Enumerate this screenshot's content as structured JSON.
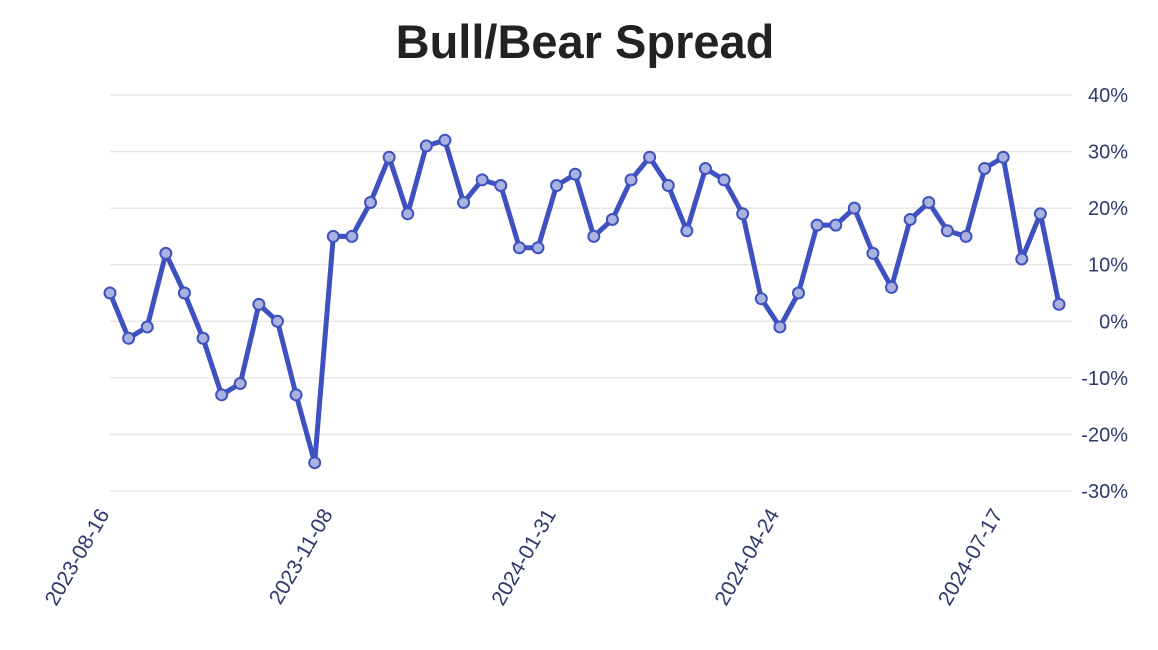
{
  "chart_data": {
    "type": "line",
    "title": "Bull/Bear Spread",
    "xlabel": "",
    "ylabel": "",
    "ylim": [
      -30,
      40
    ],
    "y_tick_values": [
      40,
      30,
      20,
      10,
      0,
      -10,
      -20,
      -30
    ],
    "y_tick_labels": [
      "40%",
      "30%",
      "20%",
      "10%",
      "0%",
      "-10%",
      "-20%",
      "-30%"
    ],
    "x_tick_labels": [
      "2023-08-16",
      "2023-11-08",
      "2024-01-31",
      "2024-04-24",
      "2024-07-17"
    ],
    "x_tick_indices": [
      0,
      12,
      24,
      36,
      48
    ],
    "grid": true,
    "y_axis_side": "right",
    "colors": {
      "line": "#3f51c0",
      "marker_fill": "#aab2e0",
      "grid": "#e3e3e3",
      "tick_text": "#2e3a6e",
      "title": "#222222"
    },
    "x": [
      "2023-08-16",
      "2023-08-23",
      "2023-08-30",
      "2023-09-06",
      "2023-09-13",
      "2023-09-20",
      "2023-09-27",
      "2023-10-04",
      "2023-10-11",
      "2023-10-18",
      "2023-10-25",
      "2023-11-01",
      "2023-11-08",
      "2023-11-15",
      "2023-11-22",
      "2023-11-29",
      "2023-12-06",
      "2023-12-13",
      "2023-12-20",
      "2023-12-27",
      "2024-01-03",
      "2024-01-10",
      "2024-01-17",
      "2024-01-24",
      "2024-01-31",
      "2024-02-07",
      "2024-02-14",
      "2024-02-21",
      "2024-02-28",
      "2024-03-06",
      "2024-03-13",
      "2024-03-20",
      "2024-03-27",
      "2024-04-03",
      "2024-04-10",
      "2024-04-17",
      "2024-04-24",
      "2024-05-01",
      "2024-05-08",
      "2024-05-15",
      "2024-05-22",
      "2024-05-29",
      "2024-06-05",
      "2024-06-12",
      "2024-06-19",
      "2024-06-26",
      "2024-07-03",
      "2024-07-10",
      "2024-07-17",
      "2024-07-24",
      "2024-07-31",
      "2024-08-07"
    ],
    "series": [
      {
        "values": [
          5,
          -3,
          -1,
          12,
          5,
          -3,
          -13,
          -11,
          3,
          0,
          -13,
          -25,
          15,
          15,
          21,
          29,
          19,
          31,
          32,
          21,
          25,
          24,
          13,
          13,
          24,
          26,
          15,
          18,
          25,
          29,
          24,
          16,
          27,
          25,
          19,
          4,
          -1,
          5,
          17,
          17,
          20,
          12,
          6,
          18,
          21,
          16,
          15,
          27,
          29,
          11,
          19,
          3
        ]
      }
    ]
  }
}
